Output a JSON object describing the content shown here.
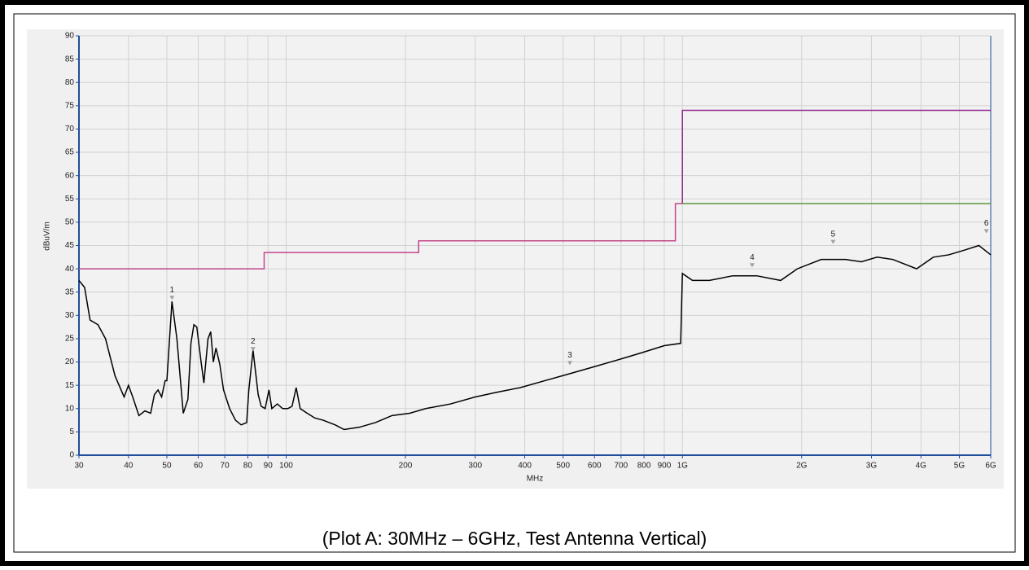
{
  "chart_data": {
    "type": "line",
    "caption": "(Plot A: 30MHz – 6GHz, Test Antenna Vertical)",
    "x_label": "MHz",
    "y_label": "dBuV/m",
    "xscale": "log",
    "grid": true,
    "xlim": [
      30,
      6000
    ],
    "ylim": [
      0,
      90
    ],
    "xticks": [
      30,
      40,
      50,
      60,
      70,
      80,
      90,
      100,
      200,
      300,
      400,
      500,
      600,
      700,
      800,
      900,
      {
        "value": 1000,
        "label": "1G"
      },
      {
        "value": 2000,
        "label": "2G"
      },
      {
        "value": 3000,
        "label": "3G"
      },
      {
        "value": 4000,
        "label": "4G"
      },
      {
        "value": 5000,
        "label": "5G"
      },
      {
        "value": 6000,
        "label": "6G"
      }
    ],
    "yticks": [
      0,
      5,
      10,
      15,
      20,
      25,
      30,
      35,
      40,
      45,
      50,
      55,
      60,
      65,
      70,
      75,
      80,
      85,
      90
    ],
    "series": [
      {
        "color": "#c2468a",
        "x": [
          30,
          88,
          88,
          216,
          216,
          960,
          960,
          1000
        ],
        "values": [
          40,
          40,
          43.5,
          43.5,
          46,
          46,
          54,
          54
        ]
      },
      {
        "color": "#8e2a8e",
        "x": [
          1000,
          1000,
          6000
        ],
        "values": [
          54,
          74,
          74
        ]
      },
      {
        "color": "#5a9a3a",
        "x": [
          1000,
          6000
        ],
        "values": [
          54,
          54
        ]
      },
      {
        "color": "#000000",
        "x": [
          30,
          31,
          32,
          33.5,
          35,
          37,
          39,
          40,
          41,
          42.5,
          44,
          45.5,
          46.5,
          47.5,
          48.5,
          49.5,
          50,
          51.5,
          53,
          55,
          56.5,
          57.5,
          58.5,
          59.5,
          61,
          62,
          63.5,
          64.5,
          65.5,
          66.5,
          68,
          69.5,
          72,
          74.5,
          77,
          79.5,
          80.5,
          82.5,
          85,
          86.5,
          88.5,
          90.5,
          92,
          95,
          98,
          101,
          103.5,
          106,
          108.5,
          113,
          118,
          124,
          133,
          140,
          153,
          168,
          185,
          205,
          225,
          260,
          300,
          340,
          390,
          450,
          520,
          600,
          690,
          790,
          900,
          990,
          1000,
          1060,
          1170,
          1340,
          1540,
          1770,
          1950,
          2240,
          2580,
          2830,
          3100,
          3400,
          3900,
          4300,
          4700,
          5150,
          5600,
          6000
        ],
        "values": [
          37.5,
          36,
          29,
          28,
          25,
          17,
          12.5,
          15,
          12.5,
          8.5,
          9.5,
          9,
          13,
          14,
          12.5,
          16,
          16,
          33,
          25,
          9,
          12,
          24,
          28,
          27.5,
          20,
          15.5,
          25,
          26.5,
          20,
          23,
          19.5,
          14,
          10,
          7.5,
          6.5,
          7,
          14,
          22.5,
          13,
          10.5,
          10,
          14,
          10,
          11,
          10,
          10,
          10.5,
          14.5,
          10,
          9,
          8,
          7.5,
          6.5,
          5.5,
          6,
          7,
          8.5,
          9,
          10,
          11,
          12.5,
          13.5,
          14.5,
          16,
          17.5,
          19,
          20.5,
          22,
          23.5,
          24,
          39,
          37.5,
          37.5,
          38.5,
          38.5,
          37.5,
          40,
          42,
          42,
          41.5,
          42.5,
          42,
          40,
          42.5,
          43,
          44,
          45,
          43
        ]
      }
    ],
    "markers": {
      "labels": [
        "1",
        "2",
        "3",
        "4",
        "5",
        "6"
      ],
      "x": [
        51.5,
        82.5,
        520,
        1500,
        2400,
        5850
      ],
      "values": [
        33.5,
        22.5,
        19.5,
        40.5,
        45.5,
        47.8
      ]
    }
  }
}
